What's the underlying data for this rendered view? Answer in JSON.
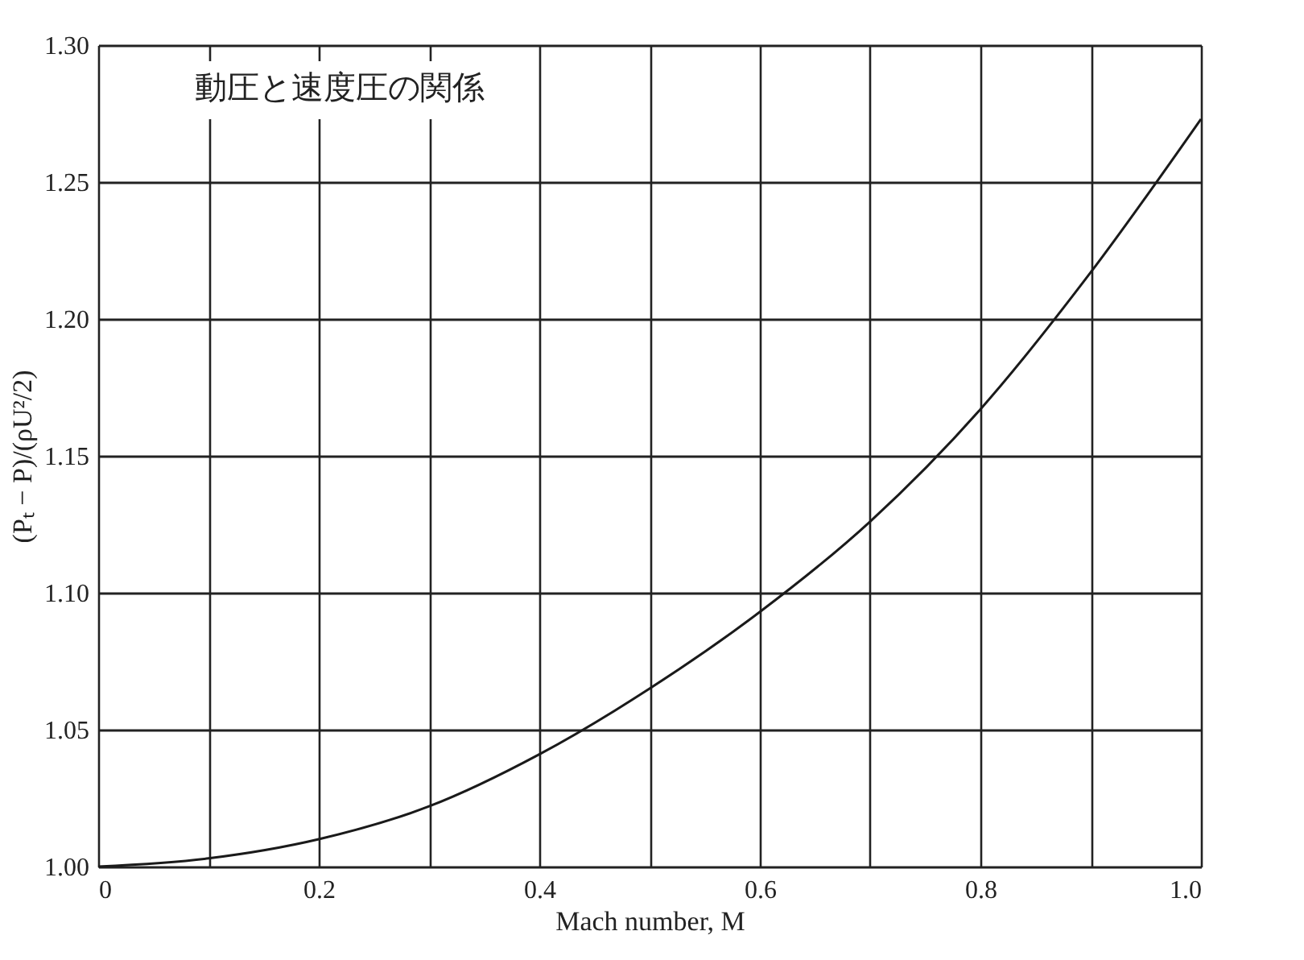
{
  "chart_data": {
    "type": "line",
    "xlabel": "Mach number, M",
    "ylabel": "(Pₜ − P)/(ρU²/2)",
    "annotations": [
      "動圧と速度圧の関係"
    ],
    "x": [
      0,
      0.1,
      0.2,
      0.3,
      0.4,
      0.5,
      0.6,
      0.7,
      0.8,
      0.9,
      1.0
    ],
    "series": [
      {
        "color": "#1a1a1a",
        "values": [
          1.0,
          1.003,
          1.01,
          1.022,
          1.041,
          1.065,
          1.093,
          1.126,
          1.167,
          1.217,
          1.273
        ]
      }
    ],
    "xlim": [
      0,
      1
    ],
    "xticks": [
      {
        "value": 0,
        "label": "0"
      },
      {
        "value": 0.1,
        "label": null
      },
      {
        "value": 0.2,
        "label": "0.2"
      },
      {
        "value": 0.3,
        "label": null
      },
      {
        "value": 0.4,
        "label": "0.4"
      },
      {
        "value": 0.5,
        "label": null
      },
      {
        "value": 0.6,
        "label": "0.6"
      },
      {
        "value": 0.7,
        "label": null
      },
      {
        "value": 0.8,
        "label": "0.8"
      },
      {
        "value": 0.9,
        "label": null
      },
      {
        "value": 1,
        "label": "1.0"
      }
    ],
    "ylim": [
      1.0,
      1.3
    ],
    "yticks": [
      {
        "value": 1,
        "label": "1.00"
      },
      {
        "value": 1.05,
        "label": "1.05"
      },
      {
        "value": 1.1,
        "label": "1.10"
      },
      {
        "value": 1.15,
        "label": "1.15"
      },
      {
        "value": 1.2,
        "label": "1.20"
      },
      {
        "value": 1.25,
        "label": "1.25"
      },
      {
        "value": 1.3,
        "label": "1.30"
      }
    ],
    "grid": true,
    "marker": "none",
    "line_style": "solid"
  }
}
